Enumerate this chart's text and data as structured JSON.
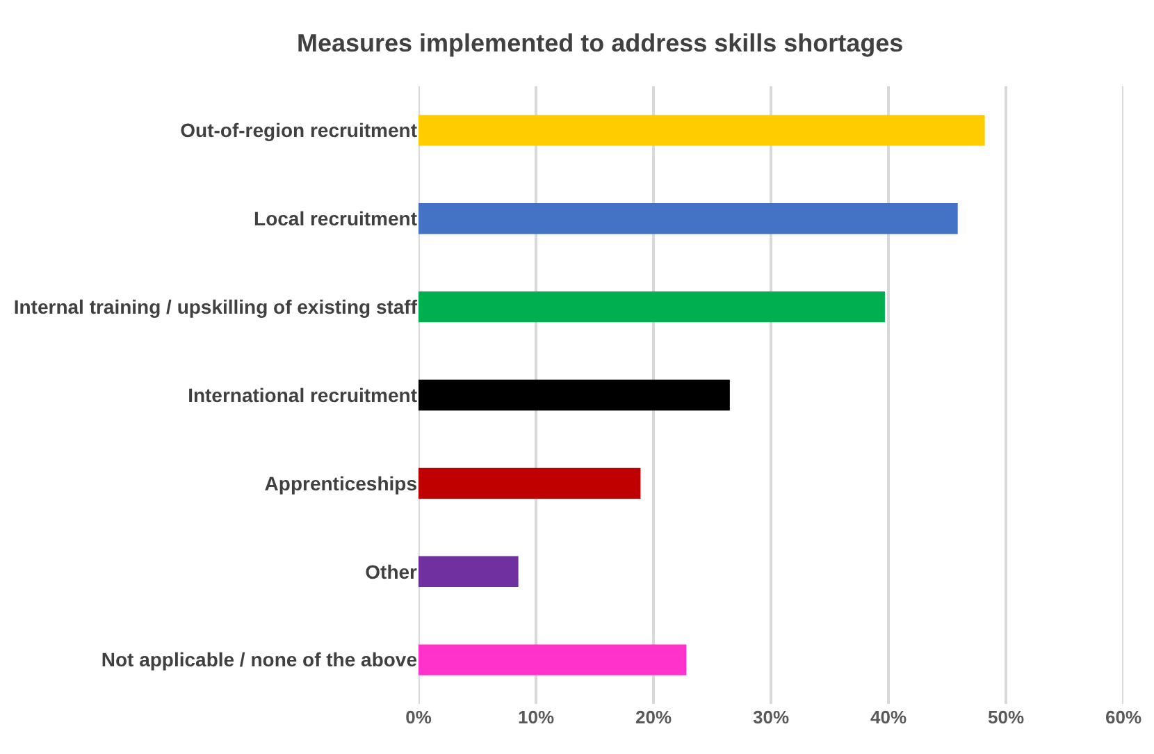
{
  "chart_data": {
    "type": "bar",
    "orientation": "horizontal",
    "title": "Measures implemented to address skills shortages",
    "categories": [
      "Out-of-region recruitment",
      "Local recruitment",
      "Internal training / upskilling of existing staff",
      "International recruitment",
      "Apprenticeships",
      "Other",
      "Not applicable / none of the above"
    ],
    "values": [
      48.2,
      45.9,
      39.7,
      26.5,
      18.9,
      8.5,
      22.8
    ],
    "colors": [
      "#ffcc00",
      "#4472c4",
      "#00b050",
      "#000000",
      "#c00000",
      "#7030a0",
      "#ff33cc"
    ],
    "xlim": [
      0,
      60
    ],
    "xticks": [
      {
        "value": 0,
        "label": "0%"
      },
      {
        "value": 10,
        "label": "10%"
      },
      {
        "value": 20,
        "label": "20%"
      },
      {
        "value": 30,
        "label": "30%"
      },
      {
        "value": 40,
        "label": "40%"
      },
      {
        "value": 50,
        "label": "50%"
      },
      {
        "value": 60,
        "label": "60%"
      }
    ],
    "grid": "x"
  }
}
